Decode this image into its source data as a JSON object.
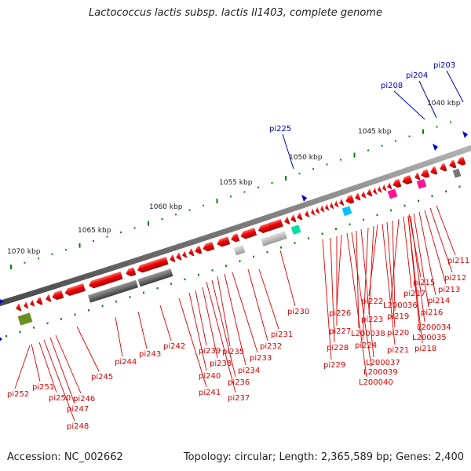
{
  "header": {
    "title": "Lactococcus lactis subsp. lactis Il1403, complete genome"
  },
  "footer": {
    "accession": "Accession: NC_002662",
    "summary": "Topology: circular; Length: 2,365,589 bp; Genes: 2,400"
  },
  "map": {
    "tick_labels": [
      "1040 kbp",
      "1045 kbp",
      "1050 kbp",
      "1055 kbp",
      "1060 kbp",
      "1065 kbp",
      "1070 kbp"
    ],
    "marker_labels": [
      "pi203",
      "pi204",
      "pi208",
      "pi225"
    ],
    "gene_labels": [
      "pi211",
      "pi212",
      "pi213",
      "pi214",
      "pi215",
      "pi216",
      "pi217",
      "pi218",
      "L200034",
      "L200035",
      "L200036",
      "pi219",
      "pi220",
      "pi221",
      "pi222",
      "pi223",
      "pi224",
      "L200037",
      "L200038",
      "L200039",
      "L200040",
      "pi226",
      "pi227",
      "pi228",
      "pi229",
      "pi230",
      "pi231",
      "pi232",
      "pi233",
      "pi234",
      "pi235",
      "pi236",
      "pi237",
      "pi238",
      "pi239",
      "pi240",
      "pi241",
      "pi242",
      "pi243",
      "pi244",
      "pi245",
      "pi246",
      "pi247",
      "pi248",
      "pi250",
      "pi251",
      "pi252"
    ],
    "colors": {
      "backbone": "#7a7a7a",
      "gene_forward": "#ee0000",
      "gene_label": "#dd0000",
      "marker": "#0000cc",
      "tick": "#008800",
      "rna_gray": "#777777",
      "pink": "#ff1493",
      "cyan": "#00bfff",
      "teal": "#00e0a0",
      "olive": "#6b8e23"
    }
  }
}
